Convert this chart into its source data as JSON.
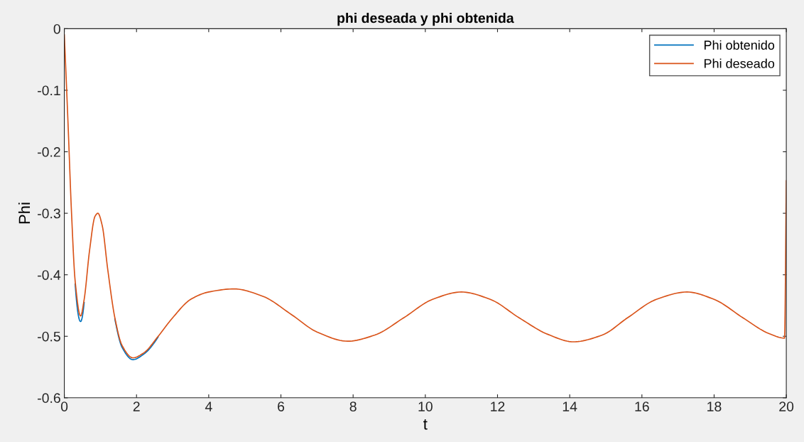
{
  "chart_data": {
    "type": "line",
    "title": "phi deseada y phi obtenida",
    "xlabel": "t",
    "ylabel": "Phi",
    "xlim": [
      0,
      20
    ],
    "ylim": [
      -0.6,
      0
    ],
    "xticks": [
      0,
      2,
      4,
      6,
      8,
      10,
      12,
      14,
      16,
      18,
      20
    ],
    "yticks": [
      -0.6,
      -0.5,
      -0.4,
      -0.3,
      -0.2,
      -0.1,
      0
    ],
    "grid": false,
    "legend": "top right",
    "line_style": "solid",
    "marker": "none",
    "x": [
      0,
      0.1,
      0.2,
      0.3,
      0.45,
      0.55,
      0.7,
      0.85,
      0.93,
      1.05,
      1.2,
      1.4,
      1.6,
      1.9,
      2.2,
      2.6,
      3,
      3.5,
      4,
      4.7,
      5.5,
      6.3,
      7,
      7.85,
      8.6,
      9.4,
      10.2,
      11,
      11.8,
      12.6,
      13.4,
      14.1,
      14.9,
      15.6,
      16.4,
      17.25,
      18,
      18.8,
      19.5,
      19.95,
      20
    ],
    "series": [
      {
        "name": "Phi obtenido",
        "color": "#0072bd",
        "values": [
          null,
          null,
          null,
          -0.415,
          -0.476,
          -0.445,
          null,
          null,
          null,
          null,
          null,
          -0.472,
          -0.518,
          -0.538,
          -0.529,
          -0.501,
          null,
          null,
          null,
          null,
          null,
          null,
          null,
          null,
          null,
          null,
          null,
          null,
          null,
          null,
          null,
          null,
          null,
          null,
          null,
          null,
          null,
          null,
          null,
          null,
          null
        ]
      },
      {
        "name": "Phi deseado",
        "color": "#d95319",
        "values": [
          -0.01,
          -0.15,
          -0.3,
          -0.41,
          -0.467,
          -0.44,
          -0.36,
          -0.305,
          -0.3,
          -0.32,
          -0.39,
          -0.47,
          -0.515,
          -0.535,
          -0.527,
          -0.5,
          -0.47,
          -0.44,
          -0.428,
          -0.423,
          -0.435,
          -0.465,
          -0.493,
          -0.508,
          -0.498,
          -0.47,
          -0.44,
          -0.428,
          -0.44,
          -0.47,
          -0.497,
          -0.509,
          -0.498,
          -0.47,
          -0.44,
          -0.428,
          -0.44,
          -0.47,
          -0.495,
          -0.503,
          -0.247
        ]
      }
    ]
  }
}
